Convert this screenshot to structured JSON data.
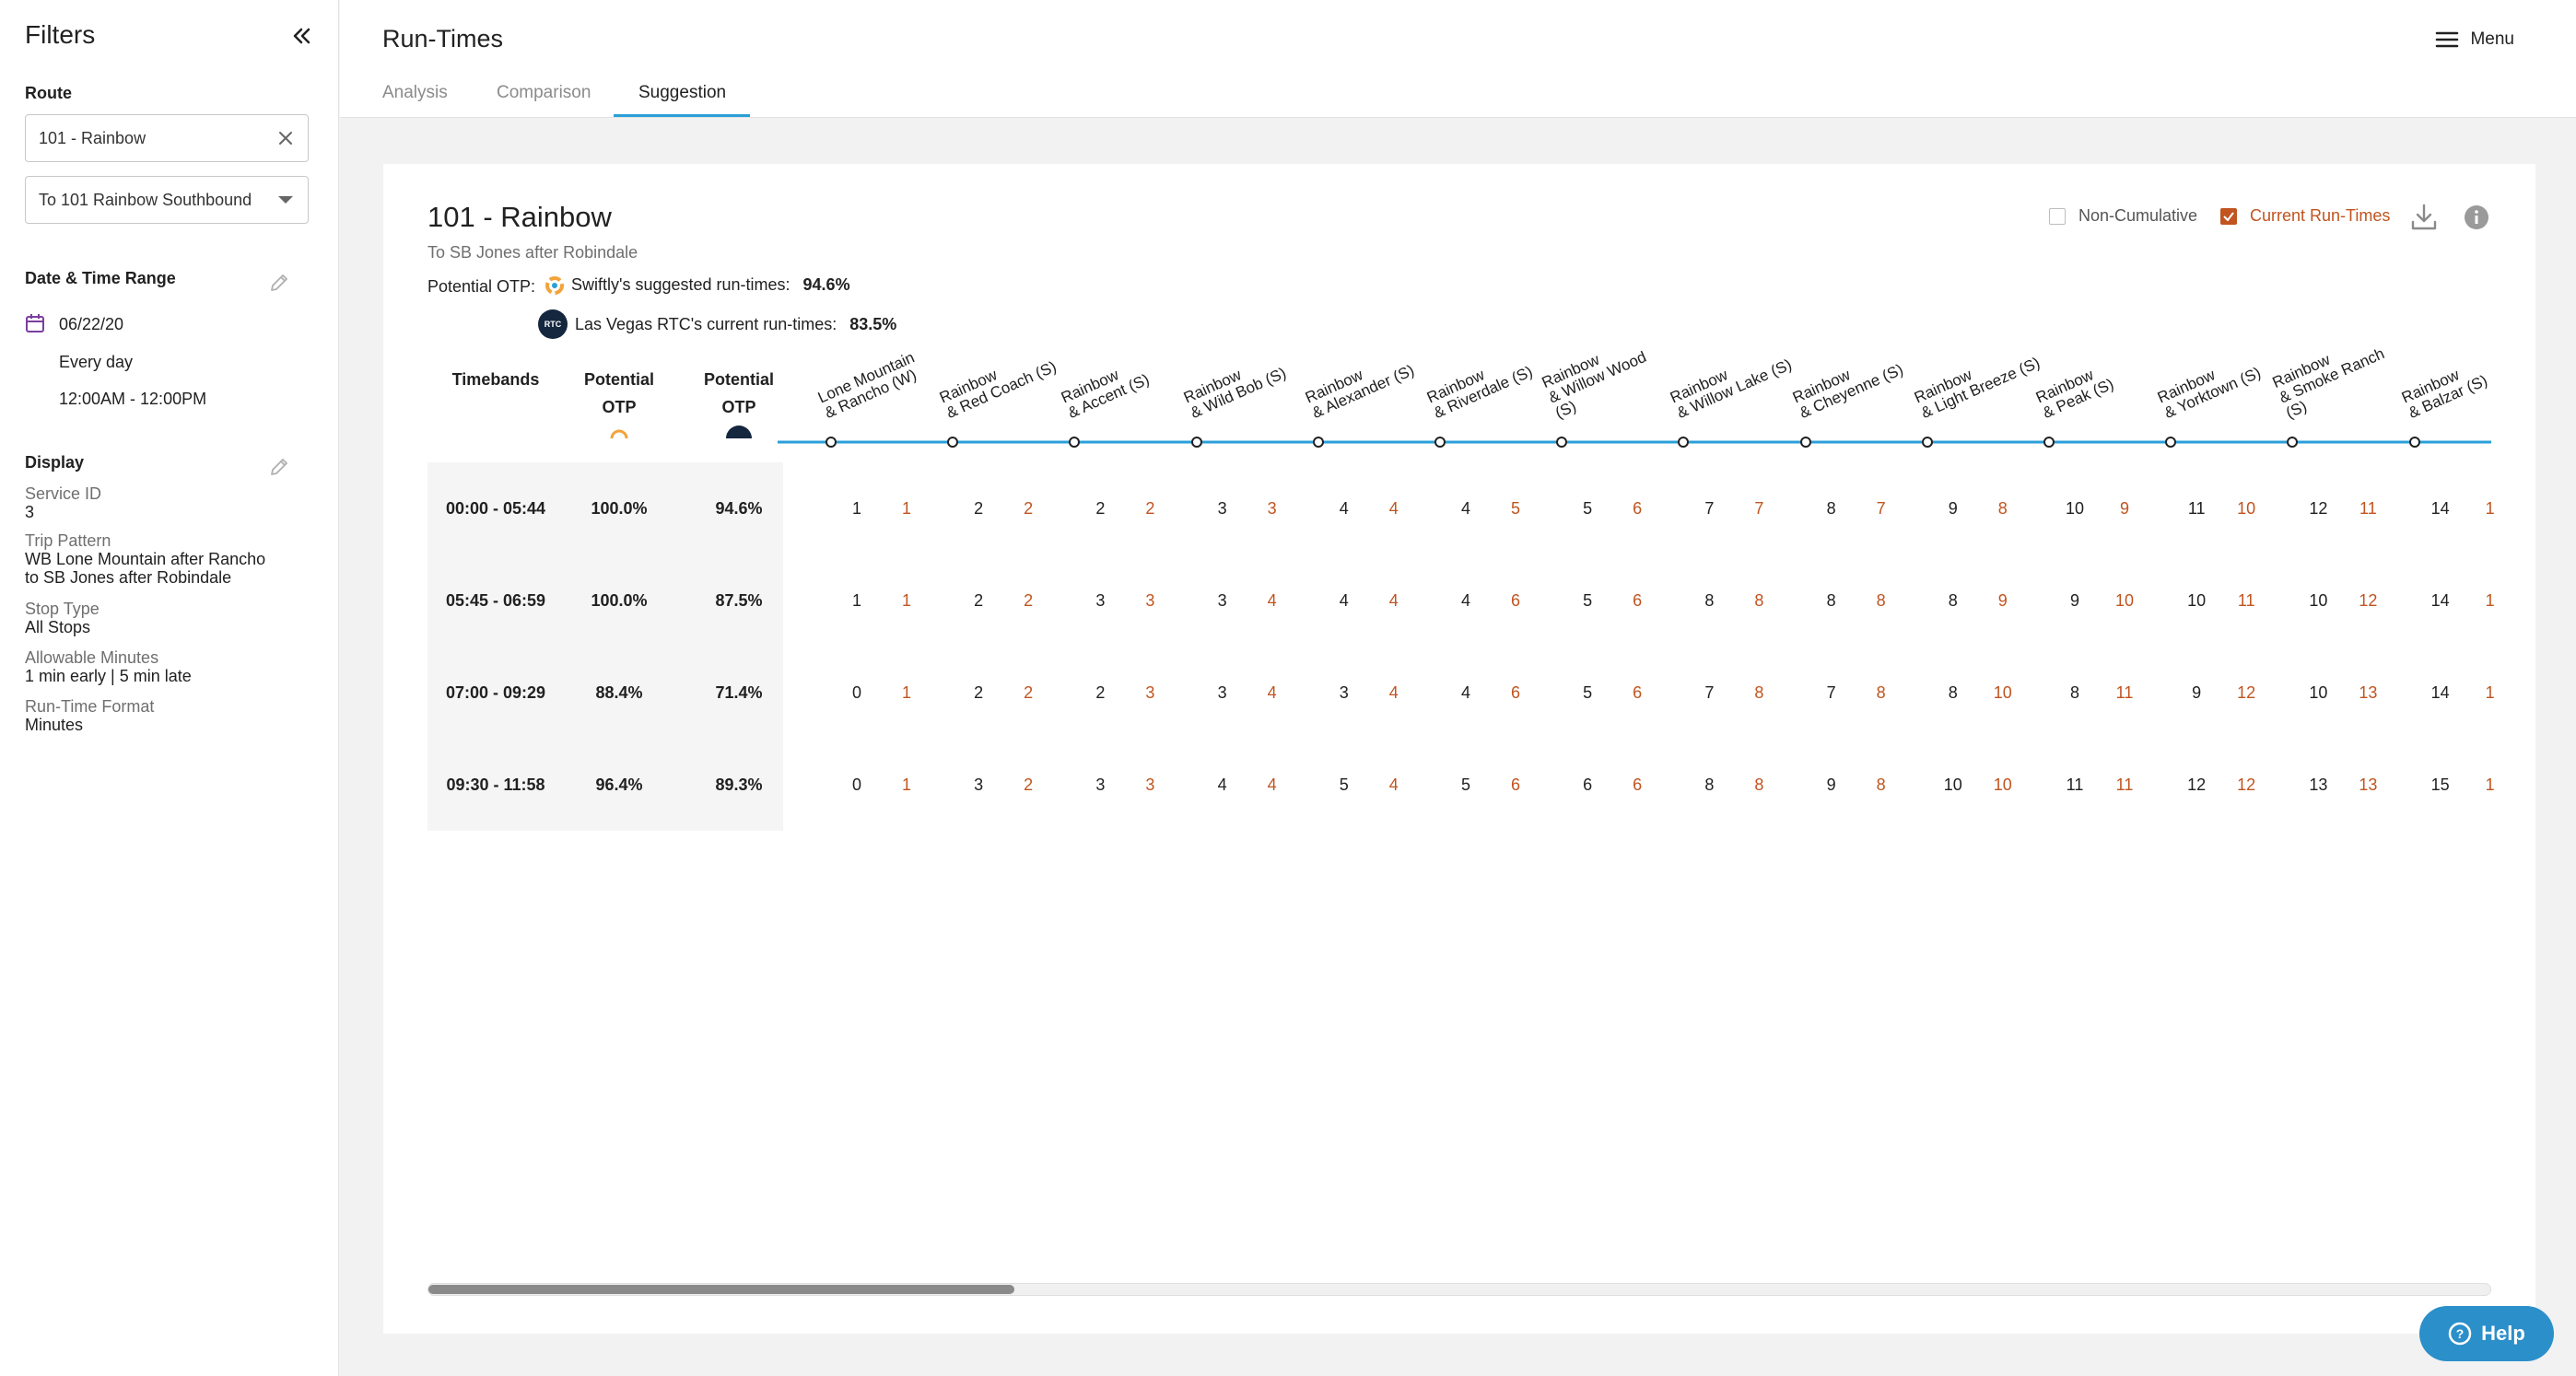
{
  "sidebar": {
    "title": "Filters",
    "route_label": "Route",
    "route_value": "101 - Rainbow",
    "direction_value": "To 101 Rainbow Southbound",
    "date_label": "Date & Time Range",
    "date_value": "06/22/20",
    "day_value": "Every day",
    "time_value": "12:00AM - 12:00PM",
    "display_label": "Display",
    "service_id_label": "Service ID",
    "service_id_value": "3",
    "trip_pattern_label": "Trip Pattern",
    "trip_pattern_line1": "WB Lone Mountain after Rancho",
    "trip_pattern_line2": "to SB Jones after Robindale",
    "stop_type_label": "Stop Type",
    "stop_type_value": "All Stops",
    "allowable_label": "Allowable Minutes",
    "allowable_value": "1 min early | 5 min late",
    "format_label": "Run-Time Format",
    "format_value": "Minutes"
  },
  "header": {
    "title": "Run-Times",
    "menu_label": "Menu",
    "tabs": [
      "Analysis",
      "Comparison",
      "Suggestion"
    ],
    "active_tab": "Suggestion"
  },
  "card": {
    "route_title": "101 - Rainbow",
    "route_subtitle": "To SB Jones after Robindale",
    "otp_label": "Potential OTP:",
    "swiftly_label": "Swiftly's suggested run-times:",
    "swiftly_value": "94.6%",
    "rtc_label": "Las Vegas RTC's current run-times:",
    "rtc_value": "83.5%",
    "rtc_logo_text": "RTC",
    "noncumulative_label": "Non-Cumulative",
    "current_runtimes_label": "Current Run-Times"
  },
  "table": {
    "headers": {
      "timebands": "Timebands",
      "potential": "Potential",
      "otp": "OTP"
    },
    "stops": [
      "Lone Mountain|& Rancho (W)",
      "Rainbow|& Red Coach (S)",
      "Rainbow|& Accent (S)",
      "Rainbow|& Wild Bob (S)",
      "Rainbow|& Alexander (S)",
      "Rainbow|& Riverdale (S)",
      "Rainbow|& Willow Wood|(S)",
      "Rainbow|& Willow Lake (S)",
      "Rainbow|& Cheyenne (S)",
      "Rainbow|& Light Breeze (S)",
      "Rainbow|& Peak (S)",
      "Rainbow|& Yorktown (S)",
      "Rainbow|& Smoke Ranch|(S)",
      "Rainbow|& Balzar (S)"
    ],
    "rows": [
      {
        "band": "00:00 - 05:44",
        "otp_swiftly": "100.0%",
        "otp_rtc": "94.6%",
        "suggested": [
          "1",
          "2",
          "2",
          "3",
          "4",
          "4",
          "5",
          "7",
          "8",
          "9",
          "10",
          "11",
          "12",
          "14"
        ],
        "current": [
          "1",
          "2",
          "2",
          "3",
          "4",
          "5",
          "6",
          "7",
          "7",
          "8",
          "9",
          "10",
          "11",
          "1"
        ]
      },
      {
        "band": "05:45 - 06:59",
        "otp_swiftly": "100.0%",
        "otp_rtc": "87.5%",
        "suggested": [
          "1",
          "2",
          "3",
          "3",
          "4",
          "4",
          "5",
          "8",
          "8",
          "8",
          "9",
          "10",
          "10",
          "14"
        ],
        "current": [
          "1",
          "2",
          "3",
          "4",
          "4",
          "6",
          "6",
          "8",
          "8",
          "9",
          "10",
          "11",
          "12",
          "1"
        ]
      },
      {
        "band": "07:00 - 09:29",
        "otp_swiftly": "88.4%",
        "otp_rtc": "71.4%",
        "suggested": [
          "0",
          "2",
          "2",
          "3",
          "3",
          "4",
          "5",
          "7",
          "7",
          "8",
          "8",
          "9",
          "10",
          "14"
        ],
        "current": [
          "1",
          "2",
          "3",
          "4",
          "4",
          "6",
          "6",
          "8",
          "8",
          "10",
          "11",
          "12",
          "13",
          "1"
        ]
      },
      {
        "band": "09:30 - 11:58",
        "otp_swiftly": "96.4%",
        "otp_rtc": "89.3%",
        "suggested": [
          "0",
          "3",
          "3",
          "4",
          "5",
          "5",
          "6",
          "8",
          "9",
          "10",
          "11",
          "12",
          "13",
          "15"
        ],
        "current": [
          "1",
          "2",
          "3",
          "4",
          "4",
          "6",
          "6",
          "8",
          "8",
          "10",
          "11",
          "12",
          "13",
          "1"
        ]
      }
    ]
  },
  "help_label": "Help",
  "colors": {
    "accent_blue": "#2a9fd8",
    "current_orange": "#c1541f",
    "help_blue": "#2b8fc9"
  },
  "icons": [
    "collapse-icon",
    "close-icon",
    "chevron-down-icon",
    "calendar-icon",
    "pencil-icon",
    "menu-icon",
    "download-icon",
    "info-icon",
    "help-icon"
  ]
}
